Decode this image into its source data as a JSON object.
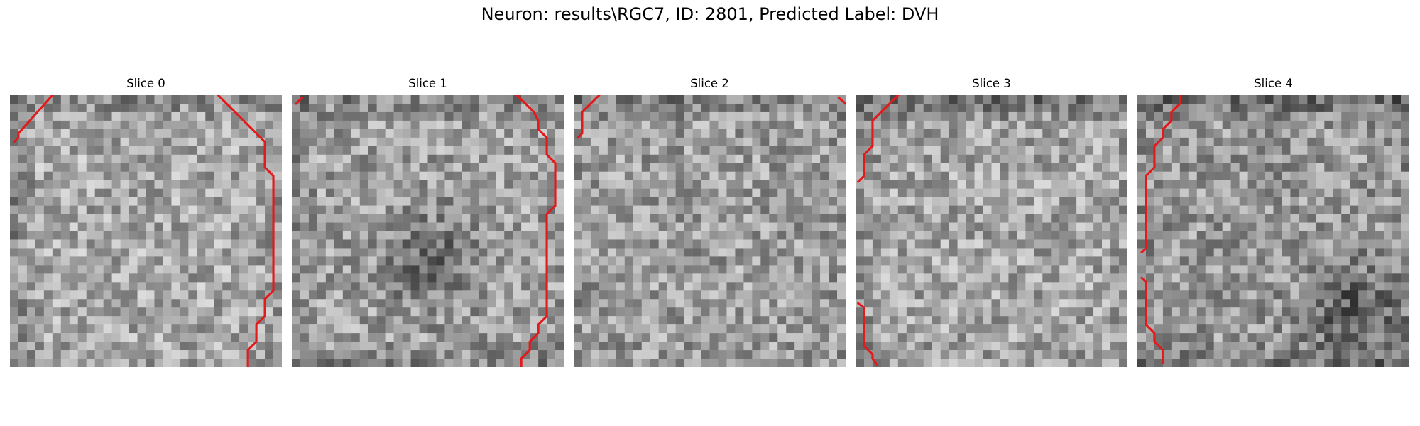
{
  "figure": {
    "title": "Neuron: results\\RGC7, ID: 2801, Predicted Label: DVH"
  },
  "chart_data": [
    {
      "type": "heatmap",
      "title": "Slice 0",
      "grid_size": [
        32,
        32
      ],
      "colormap": "gray",
      "axes": "off",
      "contour_color": "#e31a1c",
      "pattern": {
        "base": 0.66,
        "edge_dark": [
          0.55,
          0.2,
          0.1,
          0.55
        ],
        "blob": null
      },
      "contours": [
        [
          [
            0.5,
            5.5
          ],
          [
            1,
            5
          ],
          [
            1,
            4.5
          ],
          [
            5,
            0
          ]
        ],
        [
          [
            24.5,
            0
          ],
          [
            30,
            5.5
          ],
          [
            30,
            8.5
          ],
          [
            31,
            9.5
          ],
          [
            31,
            23
          ],
          [
            30,
            24
          ],
          [
            30,
            26
          ],
          [
            29,
            27
          ],
          [
            29,
            29
          ],
          [
            28,
            30
          ],
          [
            28,
            32
          ]
        ]
      ]
    },
    {
      "type": "heatmap",
      "title": "Slice 1",
      "grid_size": [
        32,
        32
      ],
      "colormap": "gray",
      "axes": "off",
      "contour_color": "#e31a1c",
      "pattern": {
        "base": 0.63,
        "edge_dark": [
          0.5,
          0.1,
          0.45,
          0.35
        ],
        "blob": [
          16,
          19,
          0.2
        ]
      },
      "contours": [
        [
          [
            0.5,
            1
          ],
          [
            1.2,
            0.3
          ]
        ],
        [
          [
            26.5,
            0
          ],
          [
            28.5,
            2
          ],
          [
            29,
            3
          ],
          [
            29,
            4
          ],
          [
            30,
            5
          ],
          [
            30,
            7
          ],
          [
            31,
            8
          ],
          [
            31,
            13
          ],
          [
            30,
            14
          ],
          [
            30,
            26
          ],
          [
            29,
            27
          ],
          [
            29,
            28
          ],
          [
            28,
            29
          ],
          [
            28,
            30
          ],
          [
            27,
            31
          ],
          [
            27,
            32
          ]
        ]
      ]
    },
    {
      "type": "heatmap",
      "title": "Slice 2",
      "grid_size": [
        32,
        32
      ],
      "colormap": "gray",
      "axes": "off",
      "contour_color": "#e31a1c",
      "pattern": {
        "base": 0.62,
        "edge_dark": [
          0.6,
          0.1,
          0.15,
          0.15
        ],
        "blob": null
      },
      "contours": [
        [
          [
            0.5,
            5
          ],
          [
            1,
            4.5
          ],
          [
            1,
            2
          ],
          [
            3,
            0
          ]
        ],
        [
          [
            31.2,
            0.3
          ],
          [
            32,
            1
          ]
        ]
      ]
    },
    {
      "type": "heatmap",
      "title": "Slice 3",
      "grid_size": [
        32,
        32
      ],
      "colormap": "gray",
      "axes": "off",
      "contour_color": "#e31a1c",
      "pattern": {
        "base": 0.65,
        "edge_dark": [
          1.0,
          0.1,
          0.15,
          0.35
        ],
        "blob": null
      },
      "contours": [
        [
          [
            0.3,
            10.2
          ],
          [
            1,
            9.5
          ],
          [
            1,
            7
          ],
          [
            2,
            6
          ],
          [
            2,
            3
          ],
          [
            3,
            2
          ],
          [
            4,
            1
          ],
          [
            5,
            0
          ]
        ],
        [
          [
            0.3,
            24.5
          ],
          [
            1,
            25
          ],
          [
            1,
            29.5
          ],
          [
            2,
            30.5
          ],
          [
            2,
            31
          ],
          [
            2.5,
            31.7
          ]
        ]
      ]
    },
    {
      "type": "heatmap",
      "title": "Slice 4",
      "grid_size": [
        32,
        32
      ],
      "colormap": "gray",
      "axes": "off",
      "contour_color": "#e31a1c",
      "pattern": {
        "base": 0.6,
        "edge_dark": [
          0.9,
          0.2,
          0.6,
          0.2
        ],
        "blob": [
          25,
          25,
          0.25
        ]
      },
      "contours": [
        [
          [
            0.5,
            18.5
          ],
          [
            1,
            18
          ],
          [
            1,
            9.5
          ],
          [
            2,
            8.5
          ],
          [
            2,
            6
          ],
          [
            3,
            5
          ],
          [
            3,
            4
          ],
          [
            4,
            3
          ],
          [
            4,
            2
          ],
          [
            5,
            1
          ],
          [
            5,
            0
          ]
        ],
        [
          [
            0.5,
            21.5
          ],
          [
            1,
            22
          ],
          [
            1,
            27
          ],
          [
            2,
            28
          ],
          [
            2,
            29
          ],
          [
            3,
            30
          ],
          [
            3,
            31.5
          ]
        ]
      ]
    }
  ]
}
